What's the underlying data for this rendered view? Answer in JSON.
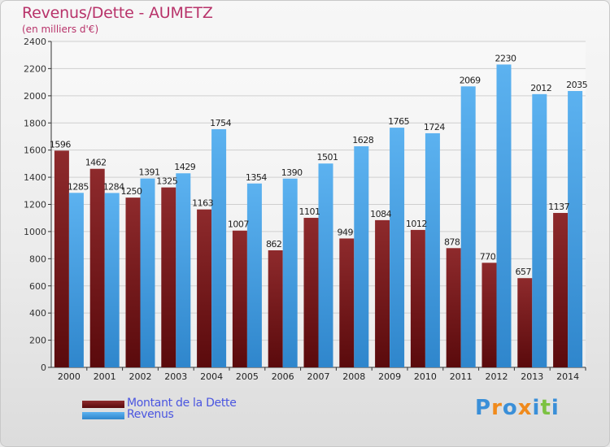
{
  "header": {
    "title": "Revenus/Dette - AUMETZ",
    "subtitle": "(en milliers d'€)"
  },
  "legend": [
    {
      "label": "Montant de la Dette",
      "color": "#7a1518"
    },
    {
      "label": "Revenus",
      "color": "#4aa3e8"
    }
  ],
  "brand": {
    "letters": [
      "P",
      "r",
      "o",
      "x",
      "i",
      "t",
      "i"
    ],
    "colors": [
      "#3a8fd8",
      "#f08a1c",
      "#3a8fd8",
      "#f08a1c",
      "#3a8fd8",
      "#7cc242",
      "#3a8fd8"
    ]
  },
  "chart_data": {
    "type": "bar",
    "title": "Revenus/Dette - AUMETZ",
    "subtitle": "(en milliers d'€)",
    "xlabel": "",
    "ylabel": "",
    "ylim": [
      0,
      2400
    ],
    "yticks": [
      0,
      200,
      400,
      600,
      800,
      1000,
      1200,
      1400,
      1600,
      1800,
      2000,
      2200,
      2400
    ],
    "grid": true,
    "legend_position": "bottom-left",
    "categories": [
      "2000",
      "2001",
      "2002",
      "2003",
      "2004",
      "2005",
      "2006",
      "2007",
      "2008",
      "2009",
      "2010",
      "2011",
      "2012",
      "2013",
      "2014"
    ],
    "series": [
      {
        "name": "Montant de la Dette",
        "color": "#7a1518",
        "values": [
          1596,
          1462,
          1250,
          1325,
          1163,
          1007,
          862,
          1101,
          949,
          1084,
          1012,
          878,
          770,
          657,
          1137
        ],
        "labels": [
          "1596",
          "1462",
          "1250",
          "1325",
          "1163",
          "1007",
          "862",
          "1101",
          "949",
          "1084",
          "1012",
          "878",
          "770",
          "657",
          "1137"
        ]
      },
      {
        "name": "Revenus",
        "color": "#4aa3e8",
        "values": [
          1285,
          1284,
          1391,
          1429,
          1754,
          1354,
          1390,
          1501,
          1628,
          1765,
          1724,
          2069,
          2230,
          2012,
          2035
        ],
        "labels": [
          "1285",
          "1284",
          "1391",
          "1429",
          "1754",
          "1354",
          "1390",
          "1501",
          "1628",
          "1765",
          "1724",
          "2069",
          "2230",
          "2012",
          "2035"
        ]
      }
    ]
  }
}
